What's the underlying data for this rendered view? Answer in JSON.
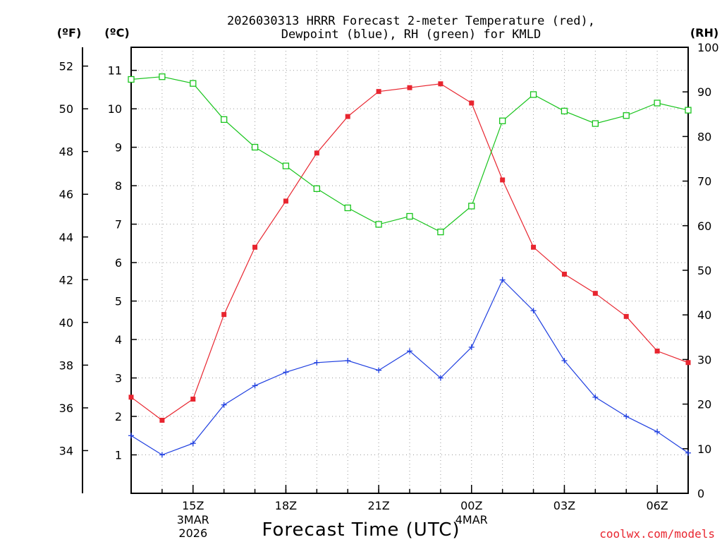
{
  "chart_data": {
    "type": "line",
    "title_line1": "2026030313 HRRR Forecast 2-meter Temperature (red),",
    "title_line2": "Dewpoint (blue), RH (green) for KMLD",
    "xlabel": "Forecast Time (UTC)",
    "credit": "coolwx.com/models",
    "unit_f": "(ºF)",
    "unit_c": "(ºC)",
    "unit_rh": "(RH)",
    "x": [
      13,
      14,
      15,
      16,
      17,
      18,
      19,
      20,
      21,
      22,
      23,
      24,
      25,
      26,
      27,
      28,
      29,
      30,
      31
    ],
    "x_ticks": [
      {
        "x": 15,
        "label": "15Z",
        "sub1": "3MAR",
        "sub2": "2026"
      },
      {
        "x": 18,
        "label": "18Z",
        "sub1": "",
        "sub2": ""
      },
      {
        "x": 21,
        "label": "21Z",
        "sub1": "",
        "sub2": ""
      },
      {
        "x": 24,
        "label": "00Z",
        "sub1": "4MAR",
        "sub2": ""
      },
      {
        "x": 27,
        "label": "03Z",
        "sub1": "",
        "sub2": ""
      },
      {
        "x": 30,
        "label": "06Z",
        "sub1": "",
        "sub2": ""
      }
    ],
    "xlim": [
      13,
      31
    ],
    "c_ticks": [
      "1",
      "2",
      "3",
      "4",
      "5",
      "6",
      "7",
      "8",
      "9",
      "10",
      "11"
    ],
    "f_ticks": [
      "34",
      "36",
      "38",
      "40",
      "42",
      "44",
      "46",
      "48",
      "50",
      "52"
    ],
    "rh_ticks": [
      "0",
      "10",
      "20",
      "30",
      "40",
      "50",
      "60",
      "70",
      "80",
      "90",
      "100"
    ],
    "ylim_c": [
      0,
      11.6
    ],
    "ylim_rh": [
      0,
      100
    ],
    "series": [
      {
        "name": "Temperature",
        "axis": "C",
        "color": "#e8252f",
        "marker": "square-filled",
        "values": [
          2.5,
          1.9,
          2.45,
          4.65,
          6.4,
          7.6,
          8.85,
          9.8,
          10.45,
          10.55,
          10.65,
          10.15,
          8.15,
          6.4,
          5.7,
          5.2,
          4.6,
          3.7,
          3.4
        ]
      },
      {
        "name": "Dewpoint",
        "axis": "C",
        "color": "#1f3fe0",
        "marker": "plus",
        "values": [
          1.5,
          1.0,
          1.3,
          2.3,
          2.8,
          3.15,
          3.4,
          3.45,
          3.2,
          3.7,
          3.0,
          3.8,
          5.55,
          4.75,
          3.45,
          2.5,
          2.0,
          1.6,
          1.05
        ]
      },
      {
        "name": "RH",
        "axis": "RH",
        "color": "#18c41c",
        "marker": "square-open",
        "values": [
          92.8,
          93.4,
          91.9,
          83.8,
          77.6,
          73.4,
          68.3,
          64.0,
          60.3,
          62.1,
          58.6,
          64.4,
          83.5,
          89.4,
          85.7,
          82.9,
          84.7,
          87.5,
          85.9
        ]
      }
    ]
  }
}
